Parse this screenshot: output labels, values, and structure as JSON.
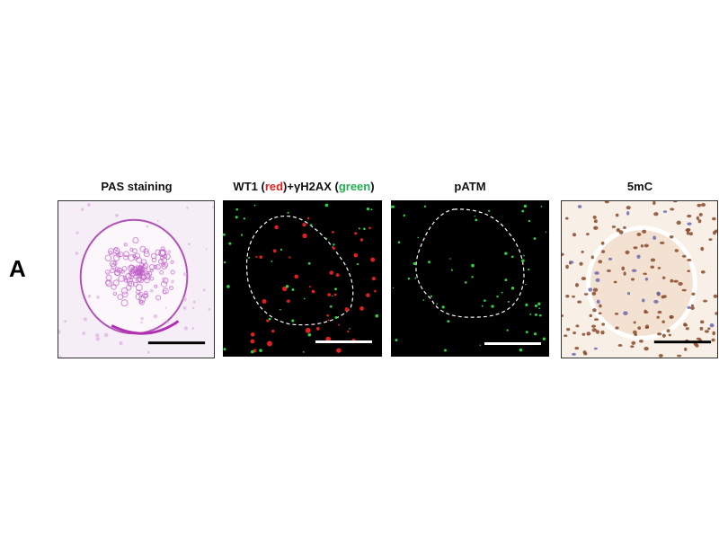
{
  "figure": {
    "panel_letter": "A",
    "panels": [
      {
        "title": "PAS staining",
        "kind": "brightfield-pas",
        "scale_bar_color": "#000000"
      },
      {
        "title_parts": [
          "WT1 (",
          "red",
          ")+γH2AX (",
          "green",
          ")"
        ],
        "kind": "fluorescence-wt1-gh2ax",
        "scale_bar_color": "#ffffff"
      },
      {
        "title": "pATM",
        "kind": "fluorescence-patm",
        "scale_bar_color": "#ffffff"
      },
      {
        "title": "5mC",
        "kind": "ihc-5mc",
        "scale_bar_color": "#000000"
      }
    ],
    "colors": {
      "red_label": "#e02020",
      "green_label": "#20b050",
      "pas_stain": "#c060c8",
      "ihc_nuclei": "#8a4a2a"
    }
  }
}
